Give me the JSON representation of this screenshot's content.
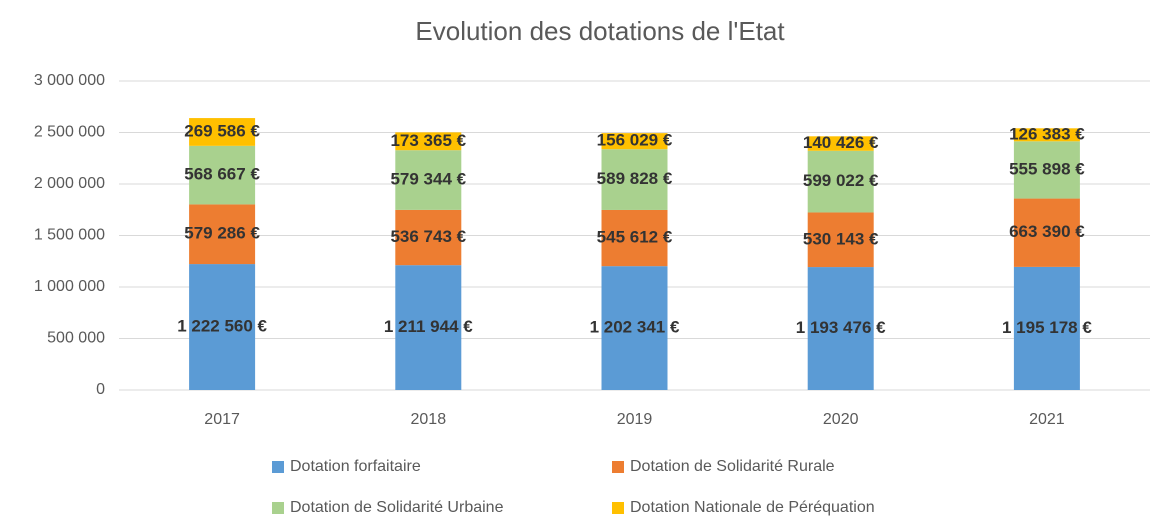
{
  "chart_data": {
    "type": "stacked_bar",
    "title": "Evolution des dotations de l'Etat",
    "categories": [
      "2017",
      "2018",
      "2019",
      "2020",
      "2021"
    ],
    "series": [
      {
        "name": "Dotation forfaitaire",
        "color": "#5b9bd5",
        "values": [
          1222560,
          1211944,
          1202341,
          1193476,
          1195178
        ],
        "value_labels": [
          "1 222 560 €",
          "1 211 944 €",
          "1 202 341 €",
          "1 193 476 €",
          "1 195 178 €"
        ]
      },
      {
        "name": "Dotation de Solidarité Rurale",
        "color": "#ed7d31",
        "values": [
          579286,
          536743,
          545612,
          530143,
          663390
        ],
        "value_labels": [
          "579 286 €",
          "536 743 €",
          "545 612 €",
          "530 143 €",
          "663 390 €"
        ]
      },
      {
        "name": "Dotation de Solidarité Urbaine",
        "color": "#a9d18e",
        "values": [
          568667,
          579344,
          589828,
          599022,
          555898
        ],
        "value_labels": [
          "568 667 €",
          "579 344 €",
          "589 828 €",
          "599 022 €",
          "555 898 €"
        ]
      },
      {
        "name": "Dotation Nationale de Péréquation",
        "color": "#ffc000",
        "values": [
          269586,
          173365,
          156029,
          140426,
          126383
        ],
        "value_labels": [
          "269 586 €",
          "173 365 €",
          "156 029 €",
          "140 426 €",
          "126 383 €"
        ]
      }
    ],
    "ylim": [
      0,
      3000000
    ],
    "yticks": [
      0,
      {
        "value": 500000,
        "label": "500 000"
      },
      {
        "value": 1000000,
        "label": "1 000 000"
      },
      {
        "value": 1500000,
        "label": "1 500 000"
      },
      {
        "value": 2000000,
        "label": "2 000 000"
      },
      {
        "value": 2500000,
        "label": "2 500 000"
      },
      {
        "value": 3000000,
        "label": "3 000 000"
      }
    ],
    "grid": true,
    "legend": "bottom"
  }
}
